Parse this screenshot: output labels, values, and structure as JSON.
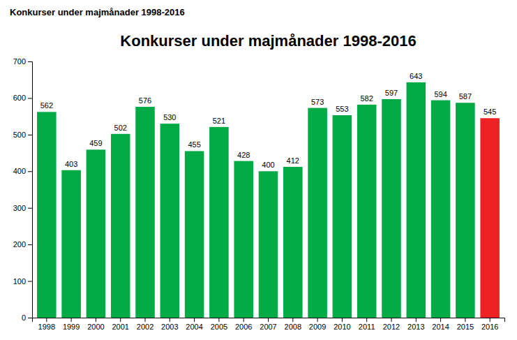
{
  "chart_data": {
    "type": "bar",
    "title": "Konkurser under majmånader 1998-2016",
    "annotations": [
      "Konkurser under majmånader 1998-2016"
    ],
    "categories": [
      "1998",
      "1999",
      "2000",
      "2001",
      "2002",
      "2003",
      "2004",
      "2005",
      "2006",
      "2007",
      "2008",
      "2009",
      "2010",
      "2011",
      "2012",
      "2013",
      "2014",
      "2015",
      "2016"
    ],
    "values": [
      562,
      403,
      459,
      502,
      576,
      530,
      455,
      521,
      428,
      400,
      412,
      573,
      553,
      582,
      597,
      643,
      594,
      587,
      545
    ],
    "colors": [
      "#00aa44",
      "#00aa44",
      "#00aa44",
      "#00aa44",
      "#00aa44",
      "#00aa44",
      "#00aa44",
      "#00aa44",
      "#00aa44",
      "#00aa44",
      "#00aa44",
      "#00aa44",
      "#00aa44",
      "#00aa44",
      "#00aa44",
      "#00aa44",
      "#00aa44",
      "#00aa44",
      "#ee2222"
    ],
    "ylim": [
      0,
      700
    ],
    "yticks": [
      0,
      100,
      200,
      300,
      400,
      500,
      600,
      700
    ],
    "grid": false,
    "data_labels": true
  }
}
